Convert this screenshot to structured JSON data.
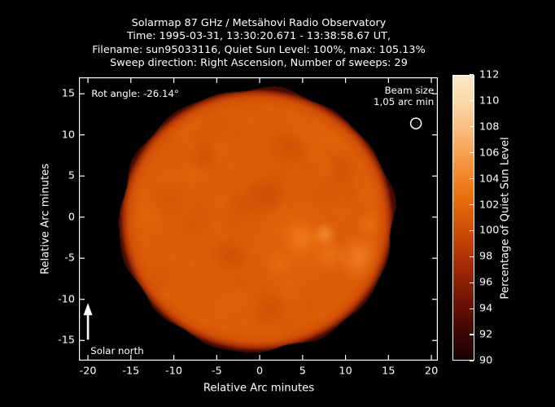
{
  "chart_data": {
    "type": "heatmap",
    "title_lines": [
      "Solarmap 87 GHz / Metsähovi Radio Observatory",
      "Time: 1995-03-31, 13:30:20.671 - 13:38:58.67 UT,",
      "Filename: sun95033116, Quiet Sun Level: 100%, max: 105.13%",
      "Sweep direction: Right Ascension, Number of sweeps: 29"
    ],
    "xlabel": "Relative Arc minutes",
    "ylabel": "Relative Arc minutes",
    "xlim": [
      -21.05,
      20.75
    ],
    "ylim": [
      -17.45,
      17.0
    ],
    "x_ticks": [
      -20,
      -15,
      -10,
      -5,
      0,
      5,
      10,
      15,
      20
    ],
    "y_ticks": [
      -15,
      -10,
      -5,
      0,
      5,
      10,
      15
    ],
    "grid": false,
    "background": "#000000",
    "frame_color": "#ffffff",
    "text_color": "#ffffff",
    "colorbar": {
      "label": "Percentage of Quiet Sun Level",
      "min": 90,
      "max": 112,
      "ticks": [
        90,
        92,
        94,
        96,
        98,
        100,
        102,
        104,
        106,
        108,
        110,
        112
      ],
      "colormap_stops": [
        [
          90,
          "#1A0101"
        ],
        [
          92,
          "#3C0604"
        ],
        [
          94,
          "#641005"
        ],
        [
          96,
          "#8C2105"
        ],
        [
          98,
          "#B23305"
        ],
        [
          100,
          "#D04C06"
        ],
        [
          102,
          "#E66609"
        ],
        [
          104,
          "#F28325"
        ],
        [
          106,
          "#F7A152"
        ],
        [
          108,
          "#F9BF82"
        ],
        [
          110,
          "#FBD8AC"
        ],
        [
          112,
          "#FCE7CA"
        ]
      ]
    },
    "annotations": {
      "rot_angle": {
        "text": "Rot angle: -26.14°",
        "x": -19.6,
        "y": 15.0
      },
      "beam_size": {
        "line1": "Beam size",
        "line2": "1,05 arc min",
        "x": 20.3,
        "y1": 15.4,
        "y2": 14.0
      },
      "beam_circle": {
        "x": 18.2,
        "y": 11.4,
        "radius_arcmin": 0.63
      },
      "solar_north": {
        "text": "Solar north",
        "x": -19.7,
        "y": -16.3
      },
      "north_arrow": {
        "x": -20.0,
        "y_base": -14.9,
        "y_tip": -10.45
      }
    },
    "sun_disk": {
      "center_arcmin": [
        -0.35,
        -0.35
      ],
      "radius_arcmin": 15.95,
      "quiet_sun_level_pct": 100,
      "max_level_pct": 105.13,
      "base_level_pct": 101.3,
      "edge_wobble": {
        "amplitude": 0.009,
        "harmonics": [
          6,
          10,
          15
        ],
        "seed": 11
      },
      "mottle": {
        "count": 150,
        "seed": 42,
        "r_min_arcmin": 0.7,
        "r_max_arcmin": 2.6,
        "level_amplitude_pct": 1.1,
        "alpha": 0.35
      },
      "bright_regions": [
        {
          "x": 4.2,
          "y": -3.4,
          "r": 5.5,
          "level": 102.6,
          "alpha": 0.5
        },
        {
          "x": 5.0,
          "y": -2.5,
          "r": 2.4,
          "level": 103.6,
          "alpha": 0.75
        },
        {
          "x": 7.6,
          "y": -2.1,
          "r": 1.5,
          "level": 105.0,
          "alpha": 0.8
        },
        {
          "x": 11.6,
          "y": -4.9,
          "r": 2.8,
          "level": 104.2,
          "alpha": 0.8
        },
        {
          "x": 8.2,
          "y": -4.6,
          "r": 2.0,
          "level": 103.4,
          "alpha": 0.7
        },
        {
          "x": 2.2,
          "y": -5.6,
          "r": 1.8,
          "level": 102.8,
          "alpha": 0.6
        },
        {
          "x": 12.8,
          "y": -0.8,
          "r": 1.7,
          "level": 103.0,
          "alpha": 0.6
        }
      ],
      "dark_regions": [
        {
          "x": 0.6,
          "y": 2.6,
          "r": 2.8,
          "level": 99.4,
          "alpha": 0.6
        },
        {
          "x": -2.0,
          "y": 1.5,
          "r": 2.2,
          "level": 99.6,
          "alpha": 0.5
        },
        {
          "x": -3.6,
          "y": -4.6,
          "r": 2.4,
          "level": 99.6,
          "alpha": 0.55
        },
        {
          "x": 1.2,
          "y": -11.2,
          "r": 2.4,
          "level": 99.5,
          "alpha": 0.55
        },
        {
          "x": -6.6,
          "y": 7.2,
          "r": 2.2,
          "level": 99.8,
          "alpha": 0.5
        },
        {
          "x": 3.2,
          "y": 8.6,
          "r": 2.6,
          "level": 99.6,
          "alpha": 0.5
        },
        {
          "x": 9.6,
          "y": 6.2,
          "r": 2.2,
          "level": 99.8,
          "alpha": 0.5
        },
        {
          "x": -10.5,
          "y": 2.0,
          "r": 2.5,
          "level": 100.2,
          "alpha": 0.4
        }
      ],
      "limb_profile": [
        {
          "t": 0.0,
          "level": 101.3,
          "alpha": 0
        },
        {
          "t": 0.84,
          "level": 101.3,
          "alpha": 0
        },
        {
          "t": 0.93,
          "level": 99.5,
          "alpha": 0.5
        },
        {
          "t": 0.97,
          "level": 97.0,
          "alpha": 0.85
        },
        {
          "t": 1.0,
          "level": 92.5,
          "alpha": 1
        }
      ]
    }
  }
}
